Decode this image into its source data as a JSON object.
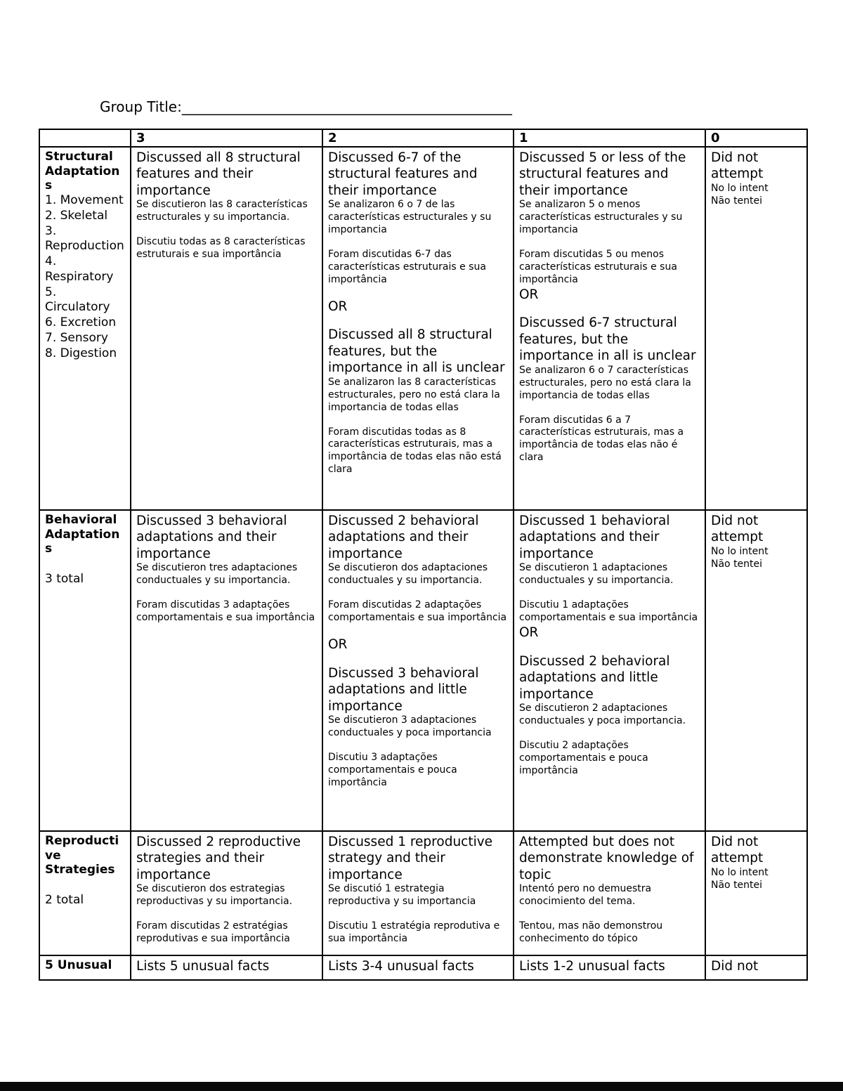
{
  "header": {
    "label": "Group Title:",
    "blank": "_______________________________________________"
  },
  "table": {
    "header": [
      "",
      "3",
      "2",
      "1",
      "0"
    ],
    "rows": [
      {
        "criterion": {
          "title": "Structural Adaptations",
          "lines": [
            "1. Movement",
            "2. Skeletal",
            "3. Reproduction",
            "4. Respiratory",
            "5. Circulatory",
            "6. Excretion",
            "7. Sensory",
            "8. Digestion"
          ]
        },
        "cells": [
          [
            {
              "s": "lg",
              "t": "Discussed all 8 structural features and their importance"
            },
            {
              "s": "sm",
              "t": "Se discutieron las 8 características estructurales y su importancia."
            },
            {
              "s": "gap"
            },
            {
              "s": "sm",
              "t": "Discutiu todas as 8 características estruturais e sua importância"
            }
          ],
          [
            {
              "s": "lg",
              "t": "Discussed 6-7 of the structural features and their importance"
            },
            {
              "s": "sm",
              "t": "Se analizaron 6 o 7 de las características estructurales y su importancia"
            },
            {
              "s": "gap"
            },
            {
              "s": "sm",
              "t": "Foram discutidas 6-7 das características estruturais e sua importância"
            },
            {
              "s": "gap"
            },
            {
              "s": "lg",
              "t": "OR"
            },
            {
              "s": "gap"
            },
            {
              "s": "lg",
              "t": "Discussed all 8 structural features, but the importance in all is unclear"
            },
            {
              "s": "sm",
              "t": "Se analizaron las 8 características estructurales, pero no está clara la importancia de todas ellas"
            },
            {
              "s": "gap"
            },
            {
              "s": "sm",
              "t": "Foram discutidas todas as 8 características estruturais, mas a importância de todas elas não está clara"
            }
          ],
          [
            {
              "s": "lg",
              "t": "Discussed 5 or less of the structural features and their importance"
            },
            {
              "s": "sm",
              "t": "Se analizaron 5 o menos características estructurales y su importancia"
            },
            {
              "s": "gap"
            },
            {
              "s": "sm",
              "t": "Foram discutidas 5 ou menos características estruturais e sua importância"
            },
            {
              "s": "lg",
              "t": "OR"
            },
            {
              "s": "gap"
            },
            {
              "s": "lg",
              "t": "Discussed 6-7 structural features, but the importance in all is unclear"
            },
            {
              "s": "sm",
              "t": "Se analizaron 6 o 7 características estructurales, pero no está clara la importancia de todas ellas"
            },
            {
              "s": "gap"
            },
            {
              "s": "sm",
              "t": "Foram discutidas 6 a 7 características estruturais, mas a importância de todas elas não é clara"
            }
          ],
          [
            {
              "s": "lg",
              "t": "Did not attempt"
            },
            {
              "s": "sm",
              "t": "No lo intent"
            },
            {
              "s": "sm",
              "t": "Não tentei"
            }
          ]
        ]
      },
      {
        "criterion": {
          "title": "Behavioral Adaptations",
          "lines": [
            "",
            "3 total"
          ]
        },
        "cells": [
          [
            {
              "s": "lg",
              "t": "Discussed 3 behavioral adaptations and their importance"
            },
            {
              "s": "sm",
              "t": "Se discutieron tres adaptaciones conductuales y su importancia."
            },
            {
              "s": "gap"
            },
            {
              "s": "sm",
              "t": "Foram discutidas 3 adaptações comportamentais e sua importância"
            }
          ],
          [
            {
              "s": "lg",
              "t": "Discussed 2 behavioral adaptations and their importance"
            },
            {
              "s": "sm",
              "t": "Se discutieron dos adaptaciones conductuales y su importancia."
            },
            {
              "s": "gap"
            },
            {
              "s": "sm",
              "t": "Foram discutidas 2 adaptações comportamentais e sua importância"
            },
            {
              "s": "gap"
            },
            {
              "s": "lg",
              "t": "OR"
            },
            {
              "s": "gap"
            },
            {
              "s": "lg",
              "t": "Discussed 3 behavioral adaptations and little importance"
            },
            {
              "s": "sm",
              "t": "Se discutieron 3 adaptaciones conductuales y poca importancia"
            },
            {
              "s": "gap"
            },
            {
              "s": "sm",
              "t": "Discutiu 3 adaptações comportamentais e pouca importância"
            }
          ],
          [
            {
              "s": "lg",
              "t": "Discussed 1 behavioral adaptations and their importance"
            },
            {
              "s": "sm",
              "t": "Se discutieron 1 adaptaciones conductuales y su importancia."
            },
            {
              "s": "gap"
            },
            {
              "s": "sm",
              "t": "Discutiu 1 adaptações comportamentais e sua importância"
            },
            {
              "s": "lg",
              "t": "OR"
            },
            {
              "s": "gap"
            },
            {
              "s": "lg",
              "t": "Discussed 2 behavioral adaptations and little importance"
            },
            {
              "s": "sm",
              "t": "Se discutieron 2 adaptaciones conductuales y poca importancia."
            },
            {
              "s": "gap"
            },
            {
              "s": "sm",
              "t": "Discutiu 2 adaptações comportamentais e pouca importância"
            }
          ],
          [
            {
              "s": "lg",
              "t": "Did not attempt"
            },
            {
              "s": "sm",
              "t": "No lo intent"
            },
            {
              "s": "sm",
              "t": "Não tentei"
            }
          ]
        ]
      },
      {
        "criterion": {
          "title": "Reproductive Strategies",
          "lines": [
            "",
            "2 total"
          ]
        },
        "cells": [
          [
            {
              "s": "lg",
              "t": "Discussed 2 reproductive strategies and their importance"
            },
            {
              "s": "sm",
              "t": "Se discutieron dos estrategias reproductivas y su importancia."
            },
            {
              "s": "gap"
            },
            {
              "s": "sm",
              "t": "Foram discutidas 2 estratégias reprodutivas e sua importância"
            }
          ],
          [
            {
              "s": "lg",
              "t": "Discussed 1 reproductive strategy and their importance"
            },
            {
              "s": "sm",
              "t": "Se discutió 1 estrategia reproductiva y su importancia"
            },
            {
              "s": "gap"
            },
            {
              "s": "sm",
              "t": "Discutiu 1 estratégia reprodutiva e sua importância"
            }
          ],
          [
            {
              "s": "lg",
              "t": "Attempted but does not demonstrate knowledge of topic"
            },
            {
              "s": "sm",
              "t": "Intentó pero no demuestra conocimiento del tema."
            },
            {
              "s": "gap"
            },
            {
              "s": "sm",
              "t": "Tentou, mas não demonstrou conhecimento do tópico"
            }
          ],
          [
            {
              "s": "lg",
              "t": "Did not attempt"
            },
            {
              "s": "sm",
              "t": "No lo intent"
            },
            {
              "s": "sm",
              "t": "Não tentei"
            }
          ]
        ]
      },
      {
        "criterion": {
          "title": "5 Unusual",
          "lines": []
        },
        "cells": [
          [
            {
              "s": "lg",
              "t": "Lists 5 unusual facts"
            }
          ],
          [
            {
              "s": "lg",
              "t": "Lists 3-4 unusual facts"
            }
          ],
          [
            {
              "s": "lg",
              "t": "Lists 1-2 unusual facts"
            }
          ],
          [
            {
              "s": "lg",
              "t": "Did not"
            }
          ]
        ]
      }
    ]
  }
}
